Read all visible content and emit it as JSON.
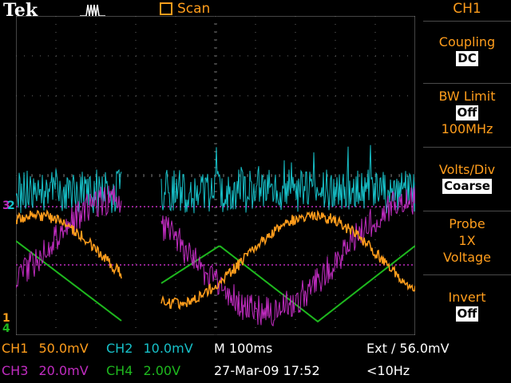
{
  "header": {
    "brand": "Tek",
    "trigger_icon": "trigger-pulse-icon",
    "acquisition_mode": "Scan"
  },
  "menu": {
    "title": "CH1",
    "coupling": {
      "label": "Coupling",
      "value": "DC"
    },
    "bw_limit": {
      "label": "BW Limit",
      "value": "Off",
      "sub": "100MHz"
    },
    "volts_div": {
      "label": "Volts/Div",
      "value": "Coarse"
    },
    "probe": {
      "label": "Probe",
      "line2": "1X",
      "line3": "Voltage"
    },
    "invert": {
      "label": "Invert",
      "value": "Off"
    }
  },
  "readout": {
    "ch1": {
      "name": "CH1",
      "scale": "50.0mV"
    },
    "ch2": {
      "name": "CH2",
      "scale": "10.0mV"
    },
    "ch3": {
      "name": "CH3",
      "scale": "20.0mV"
    },
    "ch4": {
      "name": "CH4",
      "scale": "2.00V"
    },
    "timebase": "M 100ms",
    "datetime": "27-Mar-09 17:52",
    "trigger": "Ext ∕ 56.0mV",
    "trigger_freq": "<10Hz"
  },
  "markers": {
    "ch1": "1",
    "ch2": "2",
    "ch3": "3",
    "ch4": "4"
  },
  "colors": {
    "ch1": "#ff9d1c",
    "ch2": "#17c0c8",
    "ch3": "#c02cc0",
    "ch4": "#1eb81e",
    "grid": "#6a6a6a"
  }
}
